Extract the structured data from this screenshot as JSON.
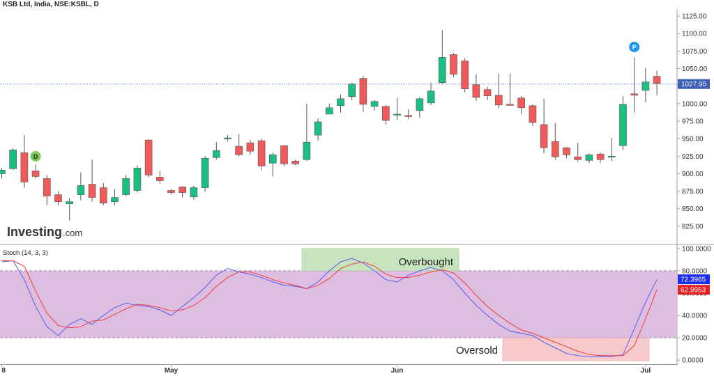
{
  "header": {
    "title": "KSB Ltd, India, NSE:KSBL, D"
  },
  "brand": {
    "logo_text": "Investing",
    "logo_suffix": ".com"
  },
  "colors": {
    "up": "#1bbf7f",
    "down": "#f05a5a",
    "k_line": "#5b5bf0",
    "d_line": "#ef3d3d",
    "band": "#ddbde0",
    "overbought": "#c8e4bf",
    "oversold": "#f6caca",
    "price_line": "#3a5fb4"
  },
  "markers": [
    {
      "label": "D",
      "index": 3,
      "color": "#7ccc5b"
    },
    {
      "label": "P",
      "index": 56,
      "color": "#1f96f0"
    }
  ],
  "stoch_panel": {
    "label": "Stoch (14, 3, 3)",
    "overbought_label": "Overbought",
    "oversold_label": "Oversold",
    "band": [
      20,
      80
    ],
    "k_value": "72.3965",
    "d_value": "62.9953"
  },
  "chart_data": [
    {
      "type": "candlestick",
      "title": "KSB Ltd, India, NSE:KSBL, D",
      "ylim": [
        800,
        1135
      ],
      "yticks": [
        "825.00",
        "850.00",
        "875.00",
        "900.00",
        "925.00",
        "950.00",
        "975.00",
        "1000.00",
        "1025.00",
        "1050.00",
        "1075.00",
        "1100.00",
        "1125.00"
      ],
      "last_price": "1027.95",
      "last_price_value": 1027.95,
      "x_labels": [
        {
          "label": "8",
          "index": 0
        },
        {
          "label": "May",
          "index": 15
        },
        {
          "label": "Jun",
          "index": 35
        },
        {
          "label": "Jul",
          "index": 57
        }
      ],
      "candles": [
        [
          900,
          905,
          893,
          908
        ],
        [
          907,
          934,
          905,
          936
        ],
        [
          930,
          888,
          880,
          955
        ],
        [
          904,
          896,
          893,
          913
        ],
        [
          893,
          868,
          855,
          898
        ],
        [
          870,
          860,
          855,
          875
        ],
        [
          857,
          860,
          833,
          865
        ],
        [
          870,
          883,
          862,
          902
        ],
        [
          885,
          866,
          860,
          920
        ],
        [
          880,
          858,
          855,
          887
        ],
        [
          860,
          866,
          855,
          878
        ],
        [
          870,
          893,
          868,
          898
        ],
        [
          876,
          908,
          873,
          912
        ],
        [
          948,
          898,
          895,
          949
        ],
        [
          895,
          890,
          886,
          904
        ],
        [
          876,
          873,
          870,
          878
        ],
        [
          881,
          873,
          866,
          882
        ],
        [
          867,
          880,
          863,
          883
        ],
        [
          880,
          922,
          874,
          925
        ],
        [
          923,
          933,
          920,
          945
        ],
        [
          951,
          951,
          946,
          955
        ],
        [
          939,
          927,
          925,
          957
        ],
        [
          944,
          932,
          927,
          948
        ],
        [
          947,
          911,
          905,
          950
        ],
        [
          915,
          927,
          896,
          930
        ],
        [
          940,
          914,
          911,
          941
        ],
        [
          918,
          914,
          912,
          920
        ],
        [
          920,
          945,
          918,
          1000
        ],
        [
          955,
          974,
          947,
          979
        ],
        [
          985,
          994,
          985,
          1000
        ],
        [
          997,
          1007,
          987,
          1013
        ],
        [
          1010,
          1028,
          1005,
          1030
        ],
        [
          1036,
          999,
          988,
          1040
        ],
        [
          996,
          1003,
          990,
          1005
        ],
        [
          996,
          976,
          970,
          998
        ],
        [
          984,
          985,
          977,
          1008
        ],
        [
          983,
          982,
          978,
          992
        ],
        [
          990,
          1007,
          980,
          1009
        ],
        [
          1001,
          1018,
          998,
          1030
        ],
        [
          1030,
          1066,
          1028,
          1105
        ],
        [
          1070,
          1042,
          1038,
          1072
        ],
        [
          1061,
          1021,
          1016,
          1065
        ],
        [
          1027,
          1009,
          1004,
          1042
        ],
        [
          1020,
          1011,
          1005,
          1024
        ],
        [
          1012,
          998,
          993,
          1043
        ],
        [
          999,
          998,
          997,
          1043
        ],
        [
          1008,
          994,
          985,
          1011
        ],
        [
          997,
          973,
          968,
          999
        ],
        [
          970,
          937,
          929,
          1007
        ],
        [
          946,
          924,
          920,
          972
        ],
        [
          937,
          927,
          922,
          938
        ],
        [
          924,
          920,
          917,
          944
        ],
        [
          919,
          927,
          915,
          929
        ],
        [
          928,
          920,
          915,
          930
        ],
        [
          925,
          925,
          918,
          951
        ],
        [
          940,
          999,
          934,
          1011
        ],
        [
          1014,
          1012,
          987,
          1066
        ],
        [
          1019,
          1031,
          1002,
          1051
        ],
        [
          1039,
          1029,
          1012,
          1047
        ]
      ]
    },
    {
      "type": "line",
      "title": "Stoch (14, 3, 3)",
      "ylim": [
        -3,
        103
      ],
      "yticks": [
        "0.0000",
        "20.0000",
        "40.0000",
        "60.0000",
        "80.0000",
        "100.0000"
      ],
      "series": [
        {
          "name": "%K",
          "values": [
            88,
            89,
            72,
            48,
            30,
            22,
            32,
            37,
            32,
            40,
            47,
            51,
            49,
            48,
            45,
            40,
            48,
            56,
            65,
            76,
            82,
            79,
            77,
            74,
            70,
            67,
            66,
            64,
            70,
            80,
            88,
            91,
            87,
            80,
            72,
            70,
            76,
            80,
            83,
            80,
            72,
            60,
            49,
            40,
            32,
            26,
            24,
            22,
            16,
            11,
            6,
            4,
            3,
            3,
            3,
            5,
            28,
            52,
            72
          ]
        },
        {
          "name": "%D",
          "values": [
            89,
            89,
            84,
            62,
            42,
            31,
            29,
            30,
            35,
            36,
            41,
            46,
            50,
            49,
            47,
            44,
            45,
            49,
            56,
            66,
            74,
            79,
            79,
            76,
            72,
            69,
            67,
            64,
            67,
            73,
            82,
            86,
            88,
            84,
            77,
            74,
            74,
            76,
            79,
            81,
            78,
            69,
            58,
            48,
            40,
            33,
            27,
            24,
            20,
            16,
            12,
            8,
            5,
            4,
            4,
            4,
            13,
            37,
            63
          ]
        }
      ]
    }
  ]
}
